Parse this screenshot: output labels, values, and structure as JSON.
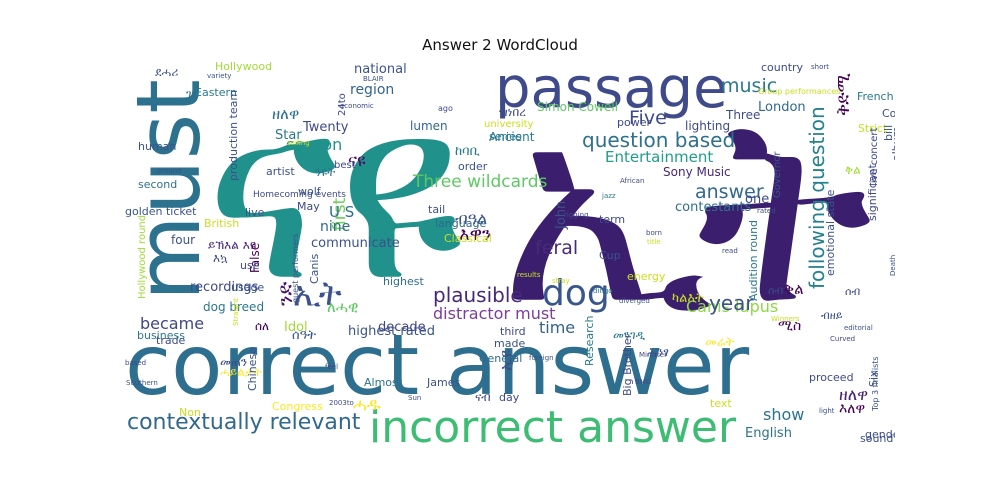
{
  "chart_data": {
    "type": "wordcloud",
    "title": "Answer 2 WordCloud",
    "words": [
      {
        "text": "ናዩ",
        "color": "#21918c"
      },
      {
        "text": "ኢት",
        "color": "#3b1f6e"
      },
      {
        "text": "correct answer",
        "color": "#2e6e8e"
      },
      {
        "text": "passage",
        "color": "#3e4a89"
      },
      {
        "text": "must",
        "color": "#2c728e"
      },
      {
        "text": "incorrect answer",
        "color": "#3dbc74"
      },
      {
        "text": "dog",
        "color": "#39568c"
      },
      {
        "text": "contextually relevant",
        "color": "#31688e"
      },
      {
        "text": "following question",
        "color": "#26828e"
      },
      {
        "text": "question based",
        "color": "#2d708e"
      },
      {
        "text": "plausible",
        "color": "#482878"
      },
      {
        "text": "ኢት",
        "color": "#3b528b"
      },
      {
        "text": "answer",
        "color": "#31688e"
      },
      {
        "text": "Three wildcards",
        "color": "#5ec962"
      },
      {
        "text": "distractor must",
        "color": "#7e3c9c"
      },
      {
        "text": "Canis lupus",
        "color": "#8fd744"
      },
      {
        "text": "Entertainment",
        "color": "#1f9e89"
      },
      {
        "text": "year",
        "color": "#3b528b"
      },
      {
        "text": "time",
        "color": "#33638d"
      },
      {
        "text": "became",
        "color": "#404688"
      },
      {
        "text": "Five",
        "color": "#3e4a89"
      },
      {
        "text": "music",
        "color": "#2a788e"
      },
      {
        "text": "season",
        "color": "#21918c"
      },
      {
        "text": "feral",
        "color": "#472a7a"
      },
      {
        "text": "show",
        "color": "#2c728e"
      },
      {
        "text": "ናዩ",
        "color": "#471164"
      },
      {
        "text": "first",
        "color": "#6ccd5a"
      },
      {
        "text": "ዘለዋ",
        "color": "#2f6c8e"
      },
      {
        "text": "ቅድሚ",
        "color": "#440154"
      },
      {
        "text": "ዘለዋ",
        "color": "#482475"
      },
      {
        "text": "region",
        "color": "#33638d"
      },
      {
        "text": "national",
        "color": "#3b528b"
      },
      {
        "text": "Twenty",
        "color": "#3e4a89"
      },
      {
        "text": "Star",
        "color": "#2a788e"
      },
      {
        "text": "ንድ",
        "color": "#471164"
      },
      {
        "text": "U S",
        "color": "#2d708e"
      },
      {
        "text": "nine",
        "color": "#31688e"
      },
      {
        "text": "communicate",
        "color": "#3b528b"
      },
      {
        "text": "Idol",
        "color": "#a2da37"
      },
      {
        "text": "decade",
        "color": "#404688"
      },
      {
        "text": "highest rated",
        "color": "#3b528b"
      },
      {
        "text": "dog breed",
        "color": "#2a788e"
      },
      {
        "text": "recordings",
        "color": "#3e4a89"
      },
      {
        "text": "four",
        "color": "#3b528b"
      },
      {
        "text": "English",
        "color": "#2c728e"
      },
      {
        "text": "London",
        "color": "#31688e"
      },
      {
        "text": "Three",
        "color": "#3e4a89"
      },
      {
        "text": "John",
        "color": "#3b528b"
      },
      {
        "text": "contestants",
        "color": "#2d708e"
      },
      {
        "text": "Sony Music",
        "color": "#482878"
      },
      {
        "text": "Ancient",
        "color": "#2a788e"
      },
      {
        "text": "Simon Cowell",
        "color": "#5ec962"
      },
      {
        "text": "lumen",
        "color": "#31688e"
      },
      {
        "text": "lighting",
        "color": "#3e4a89"
      },
      {
        "text": "ሓዱ",
        "color": "#fde725"
      },
      {
        "text": "ሰዓት",
        "color": "#39568c"
      },
      {
        "text": "ለሓዊ",
        "color": "#5ec962"
      },
      {
        "text": "ሰለ",
        "color": "#440154"
      },
      {
        "text": "ሚስ",
        "color": "#440154"
      },
      {
        "text": "ቅል",
        "color": "#440154"
      },
      {
        "text": "እለዋ",
        "color": "#440154"
      },
      {
        "text": "ብዓል",
        "color": "#3b528b"
      },
      {
        "text": "መሬት",
        "color": "#fde725"
      },
      {
        "text": "ካልእት",
        "color": "#c8e020"
      },
      {
        "text": "መንገዲ",
        "color": "#2a788e"
      },
      {
        "text": "ኢዩ",
        "color": "#3e4a89"
      },
      {
        "text": "እዋን",
        "color": "#440154"
      },
      {
        "text": "ንዩት",
        "color": "#2c728e"
      },
      {
        "text": "ዝነበረ",
        "color": "#3e4a89"
      },
      {
        "text": "ሕንፃ",
        "color": "#3b528b"
      },
      {
        "text": "ከባቢ",
        "color": "#2a788e"
      },
      {
        "text": "ናብ",
        "color": "#3e4a89"
      },
      {
        "text": "ይኽእል እዩ",
        "color": "#482475"
      },
      {
        "text": "እኳ",
        "color": "#3e4a89"
      },
      {
        "text": "ሓይልታት",
        "color": "#fde725"
      },
      {
        "text": "መጠን",
        "color": "#3e4a89"
      },
      {
        "text": "ቅል",
        "color": "#a2da37"
      },
      {
        "text": "ደሓሪ",
        "color": "#3b528b"
      },
      {
        "text": "ገዛ",
        "color": "#2c728e"
      },
      {
        "text": "Hollywood",
        "color": "#a2da37"
      },
      {
        "text": "Eastern",
        "color": "#2a788e"
      },
      {
        "text": "human",
        "color": "#3b528b"
      },
      {
        "text": "second",
        "color": "#2d708e"
      },
      {
        "text": "golden ticket",
        "color": "#3b528b"
      },
      {
        "text": "British",
        "color": "#c8e020"
      },
      {
        "text": "False",
        "color": "#440154"
      },
      {
        "text": "live",
        "color": "#3b528b"
      },
      {
        "text": "use",
        "color": "#3e4a89"
      },
      {
        "text": "usage",
        "color": "#3b528b"
      },
      {
        "text": "trade",
        "color": "#3e4a89"
      },
      {
        "text": "business",
        "color": "#2a788e"
      },
      {
        "text": "Chinese",
        "color": "#3b528b"
      },
      {
        "text": "Non",
        "color": "#c8e020"
      },
      {
        "text": "Congress",
        "color": "#fde725"
      },
      {
        "text": "artist",
        "color": "#3b528b"
      },
      {
        "text": "wolf",
        "color": "#3b528b"
      },
      {
        "text": "May",
        "color": "#3e4a89"
      },
      {
        "text": "Canis",
        "color": "#3b528b"
      },
      {
        "text": "tail",
        "color": "#3b528b"
      },
      {
        "text": "language",
        "color": "#31688e"
      },
      {
        "text": "Classical",
        "color": "#c8e020"
      },
      {
        "text": "series",
        "color": "#2a788e"
      },
      {
        "text": "university",
        "color": "#c8e020"
      },
      {
        "text": "power",
        "color": "#3e4a89"
      },
      {
        "text": "term",
        "color": "#3e4a89"
      },
      {
        "text": "Cup",
        "color": "#3b528b"
      },
      {
        "text": "energy",
        "color": "#c8e020"
      },
      {
        "text": "third",
        "color": "#3e4a89"
      },
      {
        "text": "made",
        "color": "#3b528b"
      },
      {
        "text": "General",
        "color": "#31688e"
      },
      {
        "text": "Almost",
        "color": "#2d708e"
      },
      {
        "text": "James",
        "color": "#3b528b"
      },
      {
        "text": "day",
        "color": "#3e4a89"
      },
      {
        "text": "order",
        "color": "#3b528b"
      },
      {
        "text": "Research",
        "color": "#2a788e"
      },
      {
        "text": "Big Brother",
        "color": "#3e4a89"
      },
      {
        "text": "country",
        "color": "#3e4a89"
      },
      {
        "text": "French",
        "color": "#2a788e"
      },
      {
        "text": "College",
        "color": "#3e4a89"
      },
      {
        "text": "Strict",
        "color": "#c8e020"
      },
      {
        "text": "one",
        "color": "#3e4a89"
      },
      {
        "text": "Governor",
        "color": "#3b528b"
      },
      {
        "text": "emotional state",
        "color": "#3b528b"
      },
      {
        "text": "live concert",
        "color": "#3e4a89"
      },
      {
        "text": "album",
        "color": "#3b528b"
      },
      {
        "text": "bill",
        "color": "#3b528b"
      },
      {
        "text": "significant",
        "color": "#3e4a89"
      },
      {
        "text": "Audition round",
        "color": "#2a788e"
      },
      {
        "text": "proceed",
        "color": "#3e4a89"
      },
      {
        "text": "Six",
        "color": "#3b528b"
      },
      {
        "text": "gender",
        "color": "#3e4a89"
      },
      {
        "text": "sound",
        "color": "#3b528b"
      },
      {
        "text": "text",
        "color": "#c8e020"
      },
      {
        "text": "production team",
        "color": "#3b528b"
      },
      {
        "text": "Hollywood round",
        "color": "#a2da37"
      },
      {
        "text": "highest",
        "color": "#2d708e"
      },
      {
        "text": "24to",
        "color": "#3e4a89"
      },
      {
        "text": "best",
        "color": "#3e4a89"
      },
      {
        "text": "Homecoming events",
        "color": "#3e4a89"
      },
      {
        "text": "guest performers",
        "color": "#3b528b"
      },
      {
        "text": "Group performances",
        "color": "#c8e020"
      },
      {
        "text": "Top 3 finalists",
        "color": "#3b528b"
      },
      {
        "text": "rigging",
        "color": "#3e4a89"
      },
      {
        "text": "diverged",
        "color": "#3b528b"
      },
      {
        "text": "Minister",
        "color": "#3e4a89"
      },
      {
        "text": "editorial",
        "color": "#3b528b"
      },
      {
        "text": "Curved",
        "color": "#3e4a89"
      },
      {
        "text": "Death",
        "color": "#3b528b"
      },
      {
        "text": "dingo",
        "color": "#2a788e"
      },
      {
        "text": "jazz",
        "color": "#2a788e"
      },
      {
        "text": "African",
        "color": "#3e4a89"
      },
      {
        "text": "ago",
        "color": "#3e4a89"
      },
      {
        "text": "economic",
        "color": "#3e4a89"
      },
      {
        "text": "BLAIR",
        "color": "#3b528b"
      },
      {
        "text": "variety",
        "color": "#3b528b"
      },
      {
        "text": "short",
        "color": "#3e4a89"
      },
      {
        "text": "read",
        "color": "#3e4a89"
      },
      {
        "text": "born",
        "color": "#3e4a89"
      },
      {
        "text": "light",
        "color": "#3b528b"
      },
      {
        "text": "rated",
        "color": "#3e4a89"
      },
      {
        "text": "around",
        "color": "#3b528b"
      },
      {
        "text": "Sun",
        "color": "#3b528b"
      },
      {
        "text": "feel",
        "color": "#3e4a89"
      },
      {
        "text": "2003to",
        "color": "#3e4a89"
      },
      {
        "text": "based",
        "color": "#3e4a89"
      },
      {
        "text": "Southern",
        "color": "#3b528b"
      },
      {
        "text": "BMG",
        "color": "#3e4a89"
      },
      {
        "text": "foreign",
        "color": "#3b528b"
      },
      {
        "text": "Straight",
        "color": "#c8e020"
      },
      {
        "text": "stray",
        "color": "#c8e020"
      },
      {
        "text": "results",
        "color": "#c8e020"
      },
      {
        "text": "Winners",
        "color": "#c8e020"
      },
      {
        "text": "selling",
        "color": "#c8e020"
      },
      {
        "text": "title",
        "color": "#c8e020"
      },
      {
        "text": "ሰብ",
        "color": "#3e4a89"
      },
      {
        "text": "ሰብ",
        "color": "#3e4a89"
      },
      {
        "text": "ብዘይ",
        "color": "#3b528b"
      }
    ]
  }
}
